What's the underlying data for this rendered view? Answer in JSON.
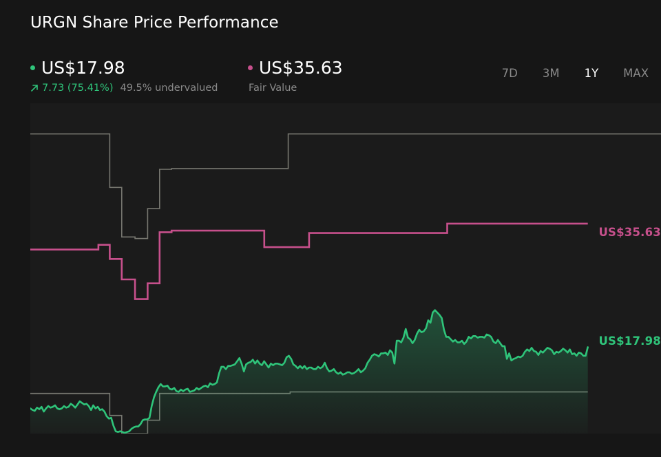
{
  "title": "URGN Share Price Performance",
  "current": {
    "price": "US$17.98",
    "change": "7.73 (75.41%)",
    "note": "49.5% undervalued",
    "color": "#2fc47a"
  },
  "fair_value": {
    "price": "US$35.63",
    "label": "Fair Value",
    "color": "#c7508c"
  },
  "ranges": [
    {
      "label": "7D",
      "active": false
    },
    {
      "label": "3M",
      "active": false
    },
    {
      "label": "1Y",
      "active": true
    },
    {
      "label": "MAX",
      "active": false
    }
  ],
  "tags": {
    "fair": "US$35.63",
    "current": "US$17.98"
  },
  "icons": {
    "change": "arrow-up-right-icon"
  },
  "chart_data": {
    "type": "line",
    "grid": false,
    "y_range": [
      7,
      49
    ],
    "series": [
      {
        "role": "share_price",
        "color": "#2fc47a",
        "fill": true,
        "values": [
          10.2,
          10.0,
          9.9,
          10.3,
          10.1,
          10.4,
          9.8,
          10.2,
          10.5,
          10.3,
          10.4,
          10.6,
          10.2,
          10.1,
          10.2,
          10.5,
          10.3,
          10.4,
          10.8,
          10.6,
          10.3,
          10.7,
          11.1,
          10.9,
          10.7,
          10.8,
          10.5,
          10.0,
          10.6,
          10.2,
          10.4,
          10.0,
          10.1,
          9.8,
          9.2,
          8.9,
          9.0,
          8.0,
          7.3,
          7.2,
          7.3,
          7.2,
          7.1,
          7.2,
          7.3,
          7.6,
          7.8,
          7.9,
          7.9,
          8.2,
          8.7,
          8.8,
          8.8,
          9.0,
          10.5,
          11.6,
          12.3,
          12.9,
          13.3,
          13.0,
          13.0,
          13.1,
          12.7,
          12.6,
          12.8,
          12.4,
          12.3,
          12.6,
          12.4,
          12.6,
          12.7,
          12.3,
          12.4,
          12.5,
          12.8,
          12.6,
          12.8,
          13.0,
          13.1,
          12.9,
          13.4,
          13.2,
          13.3,
          13.5,
          14.7,
          15.5,
          15.5,
          15.2,
          15.6,
          15.6,
          15.7,
          15.8,
          16.2,
          16.6,
          15.9,
          14.9,
          15.8,
          16.0,
          16.1,
          16.4,
          15.9,
          16.3,
          15.9,
          15.7,
          16.2,
          15.8,
          15.4,
          15.9,
          15.7,
          15.9,
          15.9,
          15.8,
          15.7,
          16.0,
          16.7,
          16.9,
          16.5,
          15.8,
          15.6,
          15.3,
          15.6,
          15.3,
          15.6,
          15.2,
          15.4,
          15.4,
          15.2,
          15.2,
          15.5,
          15.3,
          15.5,
          16.0,
          15.3,
          14.9,
          15.0,
          15.2,
          14.8,
          14.6,
          14.8,
          14.5,
          14.6,
          14.8,
          14.8,
          14.6,
          14.7,
          14.9,
          15.2,
          14.8,
          15.0,
          15.3,
          16.0,
          16.4,
          16.9,
          17.1,
          17.0,
          16.8,
          17.2,
          17.2,
          17.3,
          17.0,
          17.6,
          17.3,
          15.9,
          18.8,
          18.8,
          18.6,
          19.2,
          20.3,
          19.2,
          19.0,
          18.5,
          18.9,
          19.7,
          20.2,
          19.9,
          20.0,
          20.4,
          21.4,
          21.1,
          22.4,
          22.7,
          22.4,
          22.1,
          21.7,
          20.2,
          19.3,
          19.3,
          19.0,
          18.7,
          18.9,
          18.6,
          18.6,
          18.8,
          18.4,
          18.7,
          19.3,
          19.1,
          19.4,
          19.4,
          19.2,
          19.3,
          19.3,
          19.2,
          19.6,
          19.5,
          19.3,
          18.7,
          18.5,
          18.9,
          18.5,
          18.1,
          18.1,
          16.5,
          17.2,
          16.3,
          16.5,
          16.6,
          16.8,
          16.7,
          16.9,
          17.4,
          17.7,
          17.5,
          17.9,
          17.5,
          17.4,
          17.0,
          17.5,
          17.3,
          17.6,
          17.9,
          17.8,
          17.6,
          17.1,
          17.4,
          17.3,
          17.5,
          17.8,
          17.6,
          17.3,
          17.7,
          17.1,
          17.2,
          16.9,
          17.3,
          17.2,
          16.9,
          16.9,
          17.98
        ]
      },
      {
        "role": "fair_value",
        "color": "#c7508c",
        "steps": [
          [
            0,
            30.4
          ],
          [
            0.108,
            30.4
          ],
          [
            0.108,
            31.0
          ],
          [
            0.126,
            31.0
          ],
          [
            0.126,
            29.2
          ],
          [
            0.145,
            29.2
          ],
          [
            0.145,
            26.6
          ],
          [
            0.166,
            26.6
          ],
          [
            0.166,
            24.1
          ],
          [
            0.186,
            24.1
          ],
          [
            0.186,
            26.1
          ],
          [
            0.205,
            26.1
          ],
          [
            0.205,
            32.6
          ],
          [
            0.224,
            32.6
          ],
          [
            0.224,
            32.8
          ],
          [
            0.371,
            32.8
          ],
          [
            0.371,
            30.7
          ],
          [
            0.442,
            30.7
          ],
          [
            0.442,
            32.5
          ],
          [
            0.661,
            32.5
          ],
          [
            0.661,
            33.7
          ],
          [
            0.884,
            33.7
          ]
        ]
      },
      {
        "role": "price_range",
        "color": "#777770",
        "steps_upper": [
          [
            0,
            45.1
          ],
          [
            0.126,
            45.1
          ],
          [
            0.126,
            38.3
          ],
          [
            0.145,
            38.3
          ],
          [
            0.145,
            32.0
          ],
          [
            0.166,
            32.0
          ],
          [
            0.166,
            31.8
          ],
          [
            0.186,
            31.8
          ],
          [
            0.186,
            35.6
          ],
          [
            0.205,
            35.6
          ],
          [
            0.205,
            40.6
          ],
          [
            0.224,
            40.6
          ],
          [
            0.224,
            40.7
          ],
          [
            0.409,
            40.7
          ],
          [
            0.409,
            45.1
          ],
          [
            1,
            45.1
          ]
        ],
        "steps_lower": [
          [
            0,
            12.1
          ],
          [
            0.126,
            12.1
          ],
          [
            0.126,
            9.3
          ],
          [
            0.145,
            9.3
          ],
          [
            0.145,
            7.0
          ],
          [
            0.186,
            7.0
          ],
          [
            0.186,
            8.7
          ],
          [
            0.205,
            8.7
          ],
          [
            0.205,
            12.1
          ],
          [
            0.412,
            12.1
          ],
          [
            0.412,
            12.3
          ],
          [
            0.884,
            12.3
          ]
        ]
      }
    ]
  }
}
